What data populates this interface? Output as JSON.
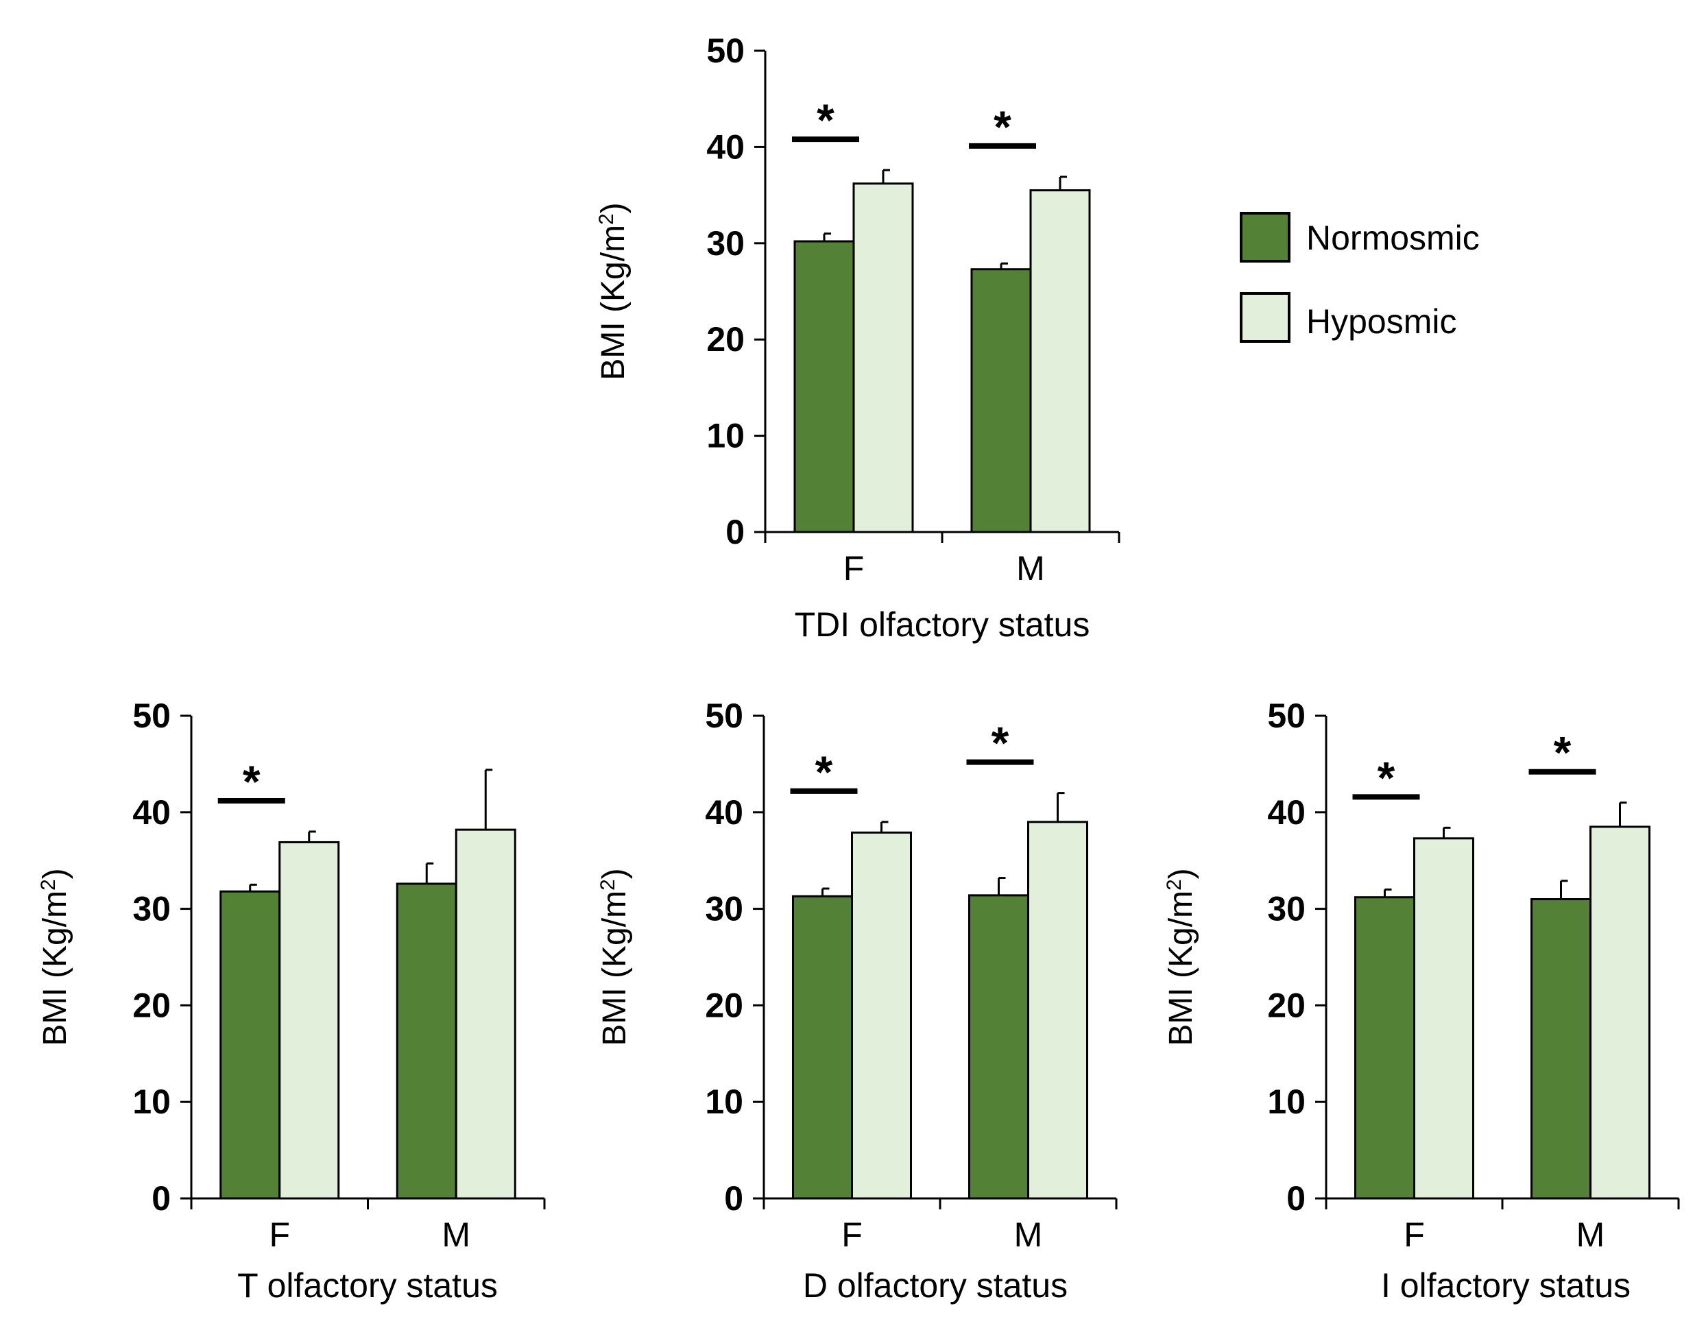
{
  "colors": {
    "normosmic": "#538135",
    "hyposmic": "#E2EFDA",
    "outline": "#000000"
  },
  "legend": {
    "items": [
      {
        "label": "Normosmic",
        "color": "#538135"
      },
      {
        "label": "Hyposmic",
        "color": "#E2EFDA"
      }
    ]
  },
  "chart_data": [
    {
      "type": "bar",
      "panel": "top-center",
      "xlabel": "TDI olfactory status",
      "ylabel": "BMI (Kg/m",
      "ylabel_superscript": "2",
      "ylabel_close": ")",
      "ylim": [
        0,
        50
      ],
      "yticks": [
        0,
        10,
        20,
        30,
        40,
        50
      ],
      "categories": [
        "F",
        "M"
      ],
      "series": [
        {
          "name": "Normosmic",
          "values": [
            30.2,
            27.3
          ],
          "errors": [
            0.8,
            0.6
          ]
        },
        {
          "name": "Hyposmic",
          "values": [
            36.2,
            35.5
          ],
          "errors": [
            1.4,
            1.4
          ]
        }
      ],
      "significance": [
        {
          "category": "F",
          "label": "*"
        },
        {
          "category": "M",
          "label": "*"
        }
      ]
    },
    {
      "type": "bar",
      "panel": "bottom-left",
      "xlabel": "T olfactory status",
      "ylabel": "BMI (Kg/m",
      "ylabel_superscript": "2",
      "ylabel_close": ")",
      "ylim": [
        0,
        50
      ],
      "yticks": [
        0,
        10,
        20,
        30,
        40,
        50
      ],
      "categories": [
        "F",
        "M"
      ],
      "series": [
        {
          "name": "Normosmic",
          "values": [
            31.8,
            32.6
          ],
          "errors": [
            0.7,
            2.1
          ]
        },
        {
          "name": "Hyposmic",
          "values": [
            36.9,
            38.2
          ],
          "errors": [
            1.1,
            6.2
          ]
        }
      ],
      "significance": [
        {
          "category": "F",
          "label": "*"
        }
      ]
    },
    {
      "type": "bar",
      "panel": "bottom-center",
      "xlabel": "D olfactory status",
      "ylabel": "BMI (Kg/m",
      "ylabel_superscript": "2",
      "ylabel_close": ")",
      "ylim": [
        0,
        50
      ],
      "yticks": [
        0,
        10,
        20,
        30,
        40,
        50
      ],
      "categories": [
        "F",
        "M"
      ],
      "series": [
        {
          "name": "Normosmic",
          "values": [
            31.3,
            31.4
          ],
          "errors": [
            0.8,
            1.8
          ]
        },
        {
          "name": "Hyposmic",
          "values": [
            37.9,
            39.0
          ],
          "errors": [
            1.1,
            3.0
          ]
        }
      ],
      "significance": [
        {
          "category": "F",
          "label": "*"
        },
        {
          "category": "M",
          "label": "*"
        }
      ]
    },
    {
      "type": "bar",
      "panel": "bottom-right",
      "xlabel": "I olfactory status",
      "ylabel": "BMI (Kg/m",
      "ylabel_superscript": "2",
      "ylabel_close": ")",
      "ylim": [
        0,
        50
      ],
      "yticks": [
        0,
        10,
        20,
        30,
        40,
        50
      ],
      "categories": [
        "F",
        "M"
      ],
      "series": [
        {
          "name": "Normosmic",
          "values": [
            31.2,
            31.0
          ],
          "errors": [
            0.8,
            1.9
          ]
        },
        {
          "name": "Hyposmic",
          "values": [
            37.3,
            38.5
          ],
          "errors": [
            1.1,
            2.5
          ]
        }
      ],
      "significance": [
        {
          "category": "F",
          "label": "*"
        },
        {
          "category": "M",
          "label": "*"
        }
      ]
    }
  ]
}
